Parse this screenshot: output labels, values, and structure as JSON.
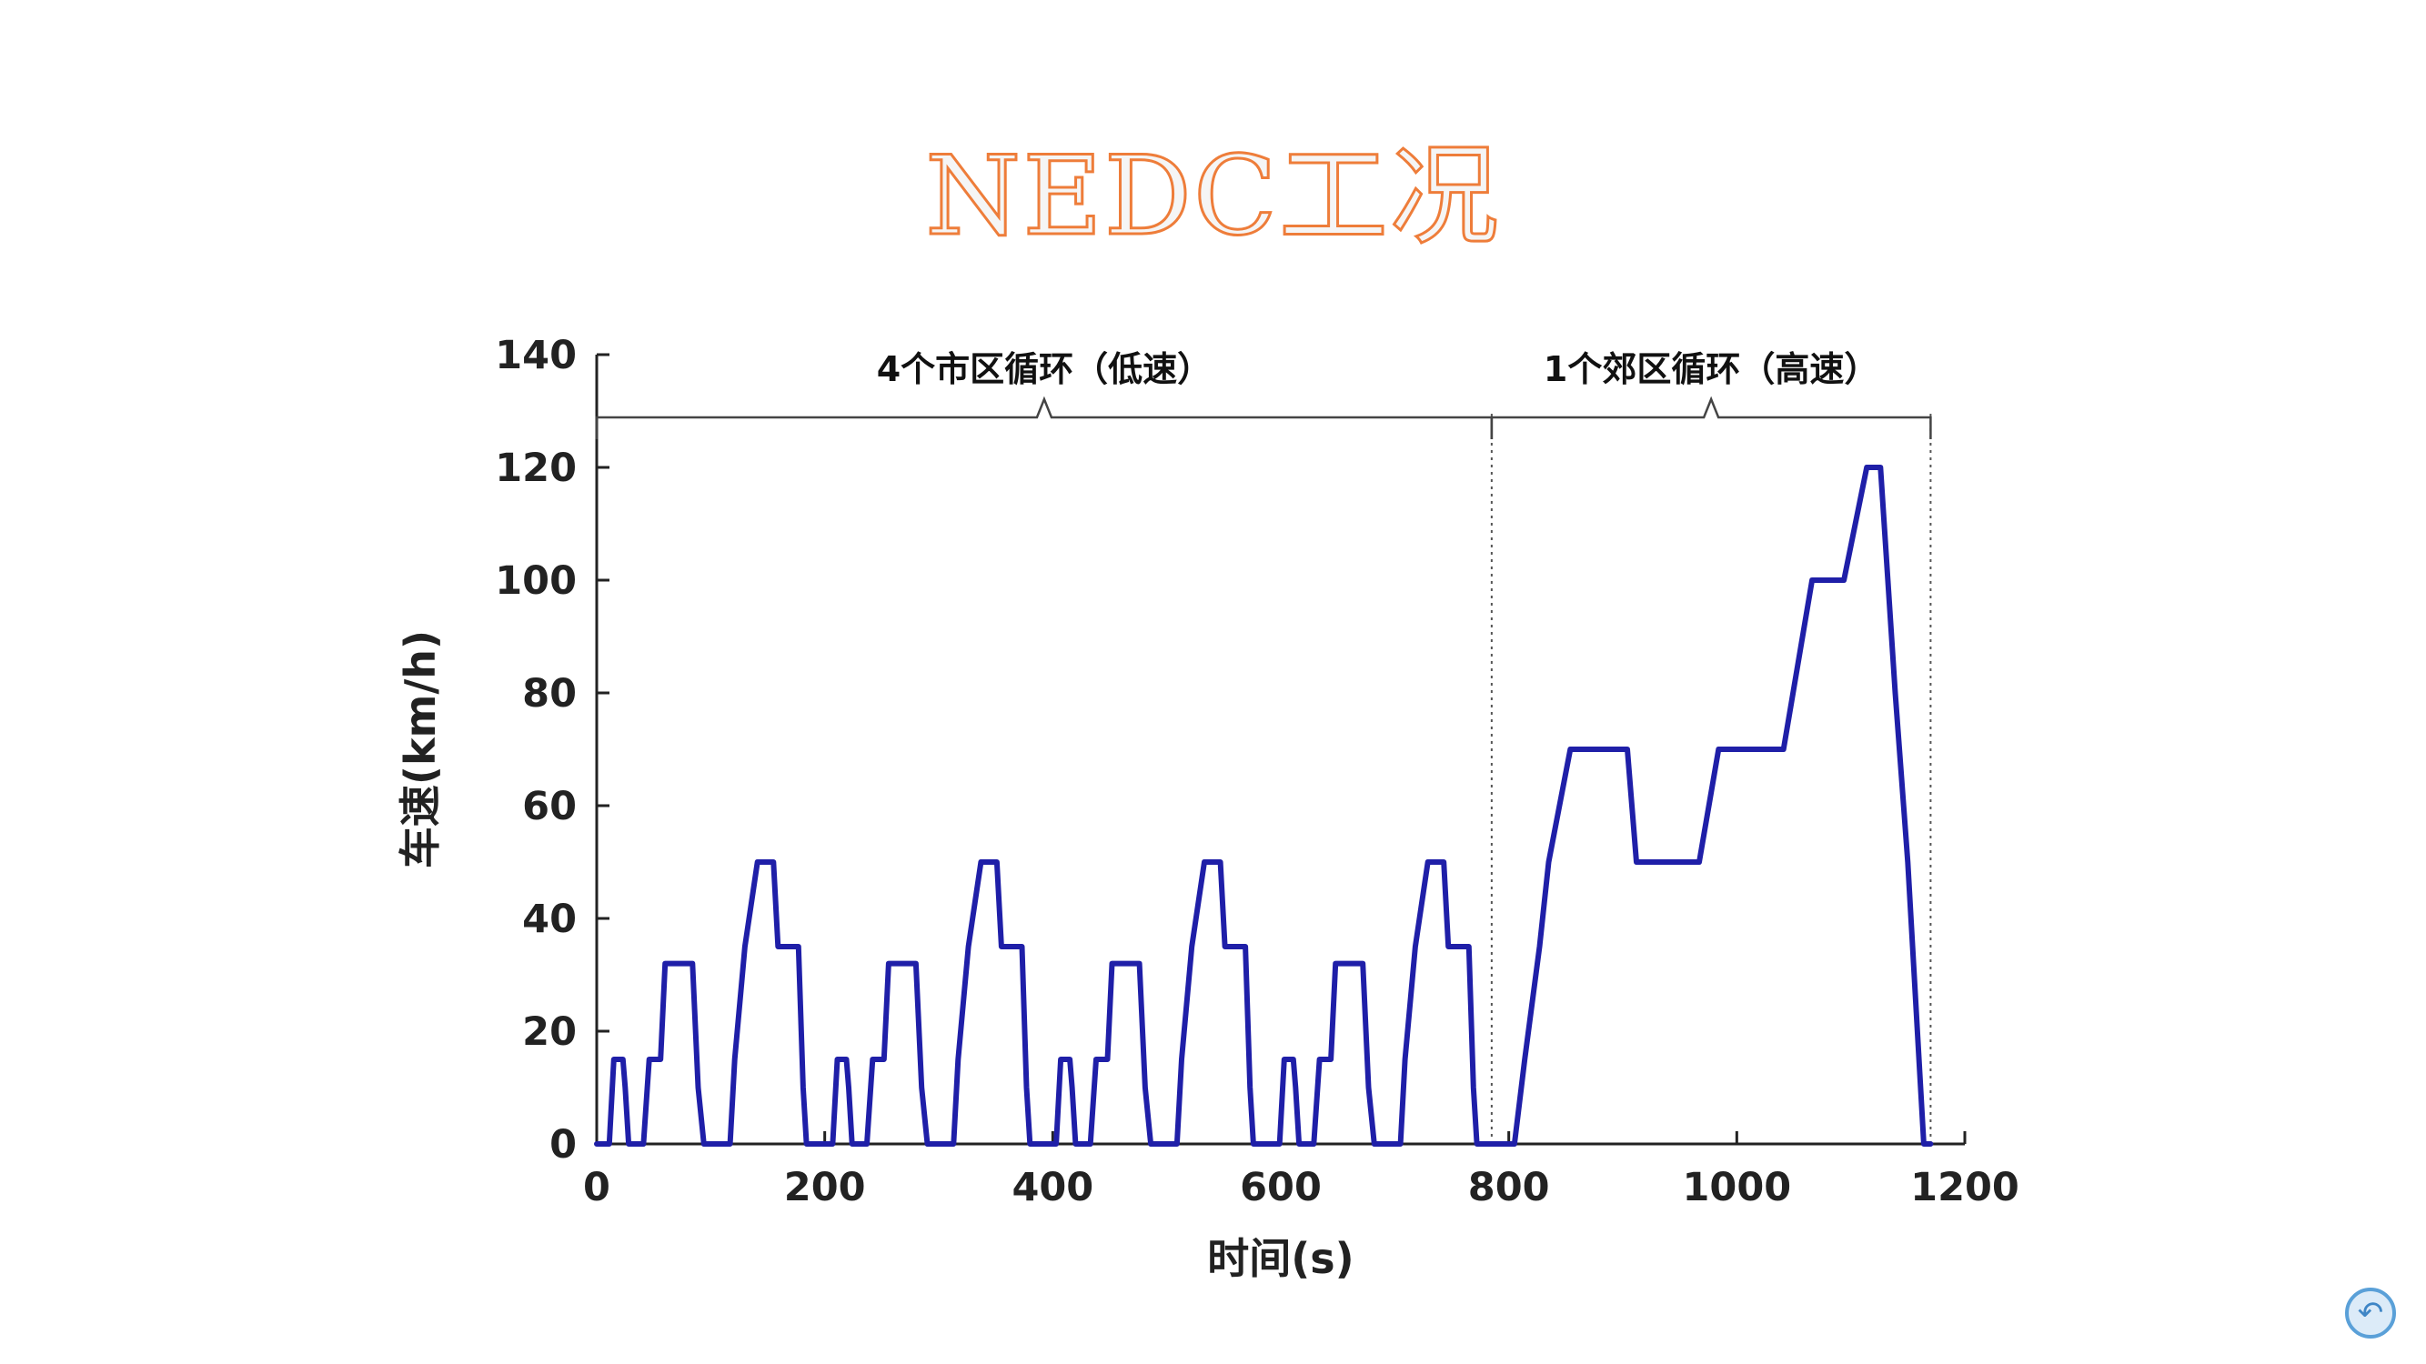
{
  "slide": {
    "title": "NEDC工况"
  },
  "controls": {
    "back_icon": "undo-icon",
    "back_glyph": "↶"
  },
  "chart_data": {
    "type": "line",
    "xlabel": "时间(s)",
    "ylabel": "车速(km/h)",
    "xlim": [
      0,
      1200
    ],
    "ylim": [
      0,
      140
    ],
    "xticks": [
      0,
      200,
      400,
      600,
      800,
      1000,
      1200
    ],
    "yticks": [
      0,
      20,
      40,
      60,
      80,
      100,
      120,
      140
    ],
    "grid": false,
    "line_color": "#1f1fa8",
    "annotations": [
      {
        "text": "4个市区循环（低速）",
        "x_start": 0,
        "x_end": 785
      },
      {
        "text": "1个郊区循环（高速）",
        "x_start": 785,
        "x_end": 1170
      }
    ],
    "divider_x": [
      785,
      1170
    ],
    "series": [
      {
        "x": [
          0,
          11,
          15,
          23,
          25,
          28,
          41,
          46,
          50,
          56,
          60,
          69,
          84,
          89,
          94,
          107,
          117,
          121,
          130,
          141,
          147,
          155,
          159,
          163,
          170,
          177,
          181,
          184,
          195,
          196,
          207,
          211,
          219,
          221,
          224,
          237,
          242,
          246,
          252,
          256,
          265,
          280,
          285,
          290,
          303,
          313,
          317,
          326,
          337,
          343,
          351,
          355,
          359,
          366,
          373,
          377,
          380,
          391,
          392,
          403,
          407,
          415,
          417,
          420,
          433,
          438,
          442,
          448,
          452,
          461,
          476,
          481,
          486,
          499,
          509,
          513,
          522,
          533,
          539,
          547,
          551,
          555,
          562,
          569,
          573,
          576,
          587,
          588,
          599,
          603,
          611,
          613,
          616,
          629,
          634,
          638,
          644,
          648,
          657,
          672,
          677,
          682,
          695,
          705,
          709,
          718,
          729,
          735,
          743,
          747,
          751,
          758,
          765,
          769,
          772,
          783,
          785,
          805,
          814,
          827,
          835,
          854,
          904,
          912,
          967,
          984,
          1041,
          1066,
          1094,
          1114,
          1126,
          1139,
          1150,
          1164,
          1170
        ],
        "y": [
          0,
          0,
          15,
          15,
          10,
          0,
          0,
          15,
          15,
          15,
          32,
          32,
          32,
          10,
          0,
          0,
          0,
          15,
          35,
          50,
          50,
          50,
          35,
          35,
          35,
          35,
          10,
          0,
          0,
          0,
          0,
          15,
          15,
          10,
          0,
          0,
          15,
          15,
          15,
          32,
          32,
          32,
          10,
          0,
          0,
          0,
          15,
          35,
          50,
          50,
          50,
          35,
          35,
          35,
          35,
          10,
          0,
          0,
          0,
          0,
          15,
          15,
          10,
          0,
          0,
          15,
          15,
          15,
          32,
          32,
          32,
          10,
          0,
          0,
          0,
          15,
          35,
          50,
          50,
          50,
          35,
          35,
          35,
          35,
          10,
          0,
          0,
          0,
          0,
          15,
          15,
          10,
          0,
          0,
          15,
          15,
          15,
          32,
          32,
          32,
          10,
          0,
          0,
          0,
          15,
          35,
          50,
          50,
          50,
          35,
          35,
          35,
          35,
          10,
          0,
          0,
          0,
          0,
          15,
          35,
          50,
          70,
          70,
          50,
          50,
          70,
          70,
          100,
          100,
          120,
          120,
          80,
          50,
          0,
          0
        ]
      }
    ]
  }
}
